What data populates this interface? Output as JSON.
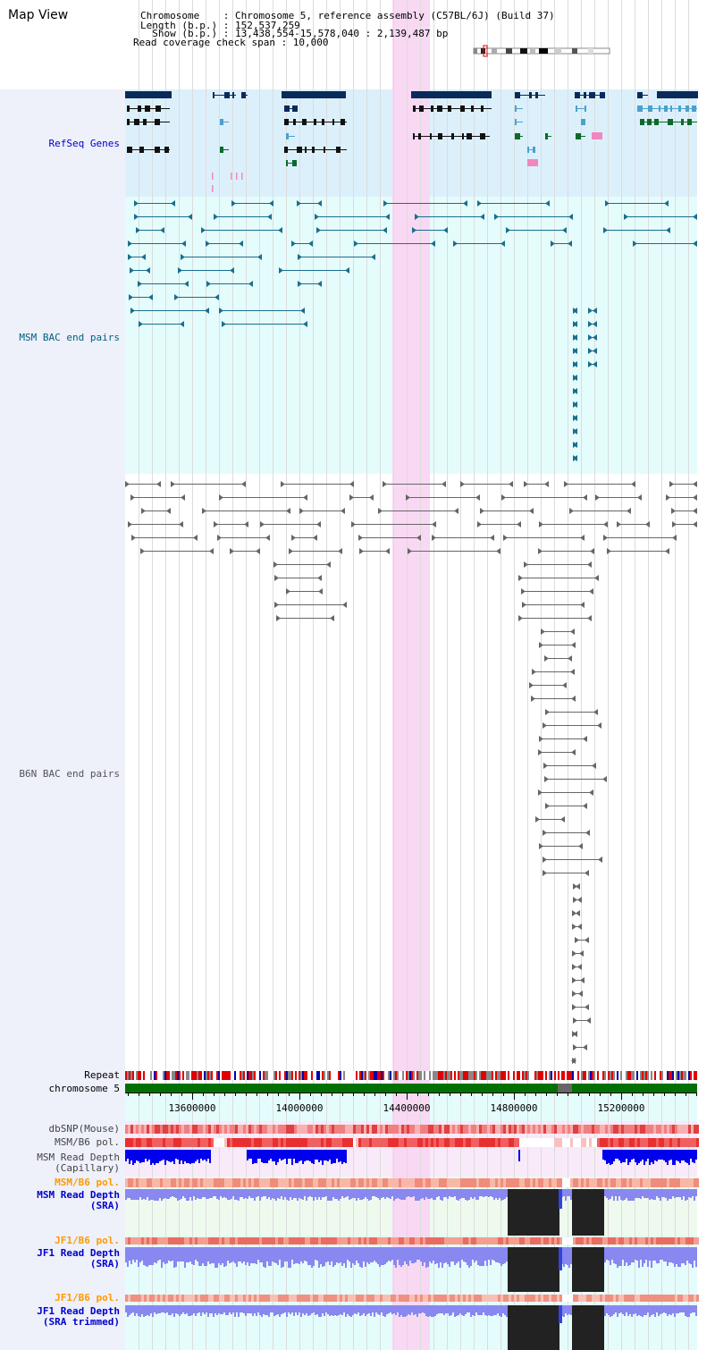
{
  "map_title": "Map View",
  "header": {
    "chromosome_line": "Chromosome    : Chromosome 5, reference assembly (C57BL/6J) (Build 37)",
    "length_line": "Length (b.p.) : 152,537,259",
    "show_line": "  Show (b.p.) : 13,438,554-15,578,040 : 2,139,487 bp",
    "coverage_line": "Read coverage check span : 10,000"
  },
  "tracks": {
    "refseq": "RefSeq Genes",
    "msm_bac": "MSM BAC end pairs",
    "b6n_bac": "B6N BAC end pairs",
    "repeat": "Repeat",
    "chromosome": "chromosome 5",
    "dbsnp": "dbSNP(Mouse)",
    "msm_b6_pol": "MSM/B6 pol.",
    "msm_depth_cap_1": "MSM Read Depth",
    "msm_depth_cap_2": "(Capillary)",
    "msm_b6_pol2": "MSM/B6 pol.",
    "msm_depth_sra_1": "MSM Read Depth",
    "msm_depth_sra_2": "(SRA)",
    "jf1_pol": "JF1/B6 pol.",
    "jf1_depth_sra_1": "JF1 Read Depth",
    "jf1_depth_sra_2": "(SRA)",
    "jf1_pol2": "JF1/B6 pol.",
    "jf1_depth_trim_1": "JF1 Read Depth",
    "jf1_depth_trim_2": "(SRA trimmed)"
  },
  "axis": {
    "ticks": [
      "13600000",
      "14000000",
      "14400000",
      "14800000",
      "15200000"
    ]
  },
  "colors": {
    "refseq_bg": "#dcf0fb",
    "msm_bg": "#e5fcfc",
    "highlight": "#f8d8f3",
    "dark_navy": "#0a2a5a",
    "repeat_red": "#e00000",
    "chrom_green": "#007000",
    "depth_blue": "#0000ee",
    "depth_light": "#8888f0"
  }
}
